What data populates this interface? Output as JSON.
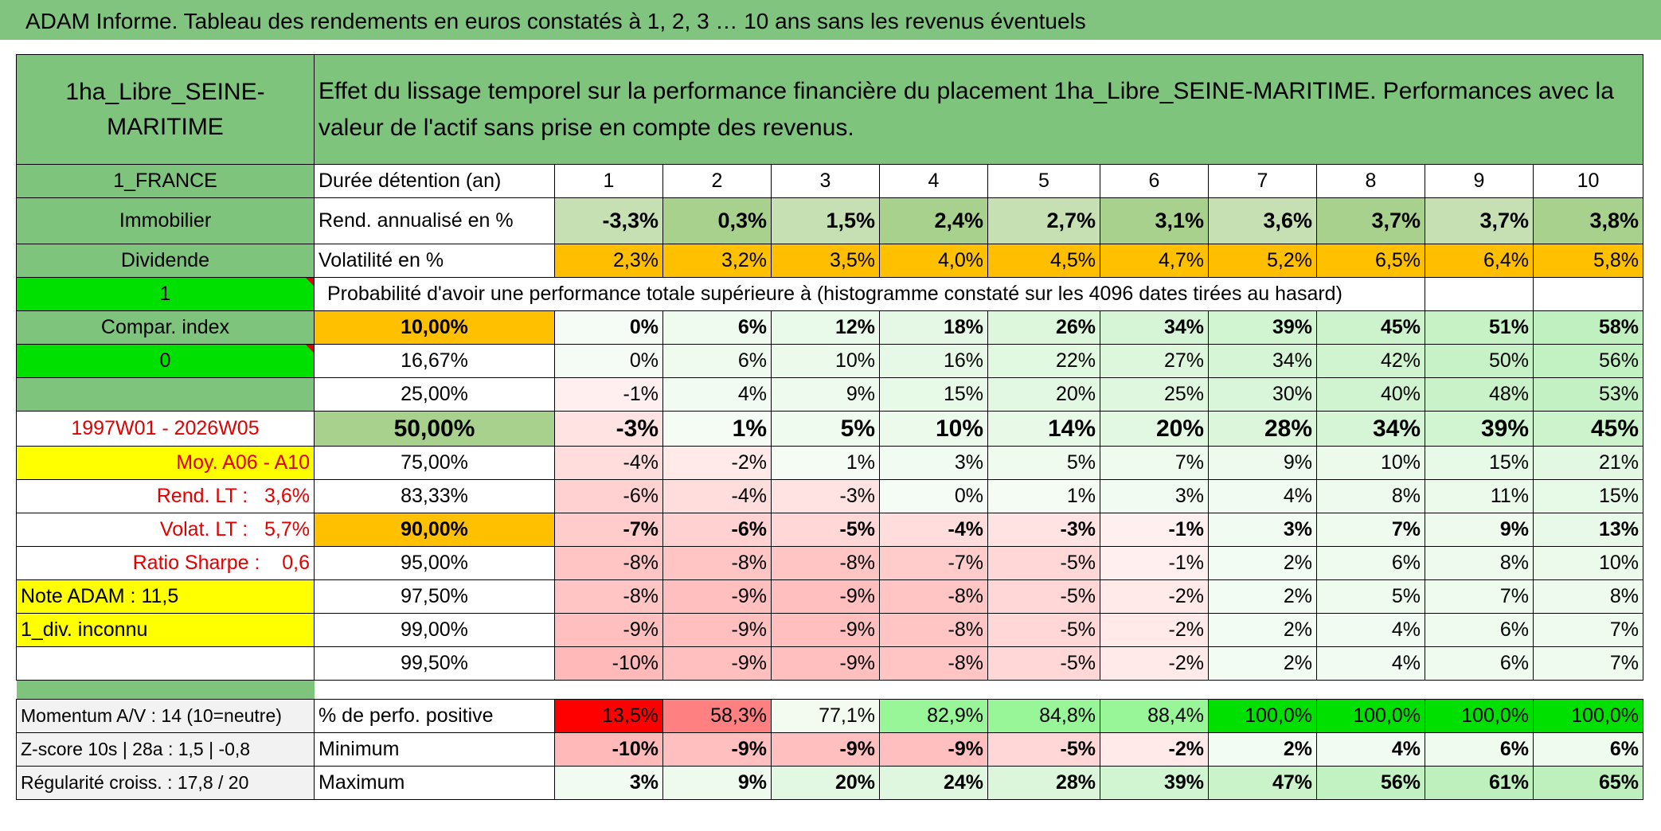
{
  "title": "ADAM Informe. Tableau des rendements en euros constatés à 1, 2, 3 … 10 ans sans les revenus éventuels",
  "asset_name": "1ha_Libre_SEINE-MARITIME",
  "header_text": "Effet du lissage temporel sur la performance financière du placement 1ha_Libre_SEINE-MARITIME. Performances avec la valeur de l'actif sans prise en compte des revenus.",
  "left": {
    "country": "1_FRANCE",
    "category": "Immobilier",
    "dividend": "Dividende",
    "one": "1",
    "compar_index": "Compar. index",
    "zero": "0",
    "period": "1997W01 - 2026W05",
    "moy": "Moy. A06 - A10",
    "rend_lt_label": "Rend. LT :",
    "rend_lt_value": "3,6%",
    "volat_lt_label": "Volat. LT :",
    "volat_lt_value": "5,7%",
    "sharpe_label": "Ratio Sharpe :",
    "sharpe_value": "0,6",
    "note": "Note ADAM : 11,5",
    "div": "1_div. inconnu"
  },
  "duration_label": "Durée détention (an)",
  "years": [
    "1",
    "2",
    "3",
    "4",
    "5",
    "6",
    "7",
    "8",
    "9",
    "10"
  ],
  "rend_label": "Rend. annualisé en %",
  "rend": [
    "-3,3%",
    "0,3%",
    "1,5%",
    "2,4%",
    "2,7%",
    "3,1%",
    "3,6%",
    "3,7%",
    "3,7%",
    "3,8%"
  ],
  "vol_label": "Volatilité en %",
  "vol": [
    "2,3%",
    "3,2%",
    "3,5%",
    "4,0%",
    "4,5%",
    "4,7%",
    "5,2%",
    "6,5%",
    "6,4%",
    "5,8%"
  ],
  "prob_text": "Probabilité d'avoir une performance totale supérieure à (histogramme constaté sur les 4096 dates tirées au hasard)",
  "percentiles": [
    {
      "p": "10,00%",
      "v": [
        "0%",
        "6%",
        "12%",
        "18%",
        "26%",
        "34%",
        "39%",
        "45%",
        "51%",
        "58%"
      ]
    },
    {
      "p": "16,67%",
      "v": [
        "0%",
        "6%",
        "10%",
        "16%",
        "22%",
        "27%",
        "34%",
        "42%",
        "50%",
        "56%"
      ]
    },
    {
      "p": "25,00%",
      "v": [
        "-1%",
        "4%",
        "9%",
        "15%",
        "20%",
        "25%",
        "30%",
        "40%",
        "48%",
        "53%"
      ]
    },
    {
      "p": "50,00%",
      "v": [
        "-3%",
        "1%",
        "5%",
        "10%",
        "14%",
        "20%",
        "28%",
        "34%",
        "39%",
        "45%"
      ]
    },
    {
      "p": "75,00%",
      "v": [
        "-4%",
        "-2%",
        "1%",
        "3%",
        "5%",
        "7%",
        "9%",
        "10%",
        "15%",
        "21%"
      ]
    },
    {
      "p": "83,33%",
      "v": [
        "-6%",
        "-4%",
        "-3%",
        "0%",
        "1%",
        "3%",
        "4%",
        "8%",
        "11%",
        "15%"
      ]
    },
    {
      "p": "90,00%",
      "v": [
        "-7%",
        "-6%",
        "-5%",
        "-4%",
        "-3%",
        "-1%",
        "3%",
        "7%",
        "9%",
        "13%"
      ]
    },
    {
      "p": "95,00%",
      "v": [
        "-8%",
        "-8%",
        "-8%",
        "-7%",
        "-5%",
        "-1%",
        "2%",
        "6%",
        "8%",
        "10%"
      ]
    },
    {
      "p": "97,50%",
      "v": [
        "-8%",
        "-9%",
        "-9%",
        "-8%",
        "-5%",
        "-2%",
        "2%",
        "5%",
        "7%",
        "8%"
      ]
    },
    {
      "p": "99,00%",
      "v": [
        "-9%",
        "-9%",
        "-9%",
        "-8%",
        "-5%",
        "-2%",
        "2%",
        "4%",
        "6%",
        "7%"
      ]
    },
    {
      "p": "99,50%",
      "v": [
        "-10%",
        "-9%",
        "-9%",
        "-8%",
        "-5%",
        "-2%",
        "2%",
        "4%",
        "6%",
        "7%"
      ]
    }
  ],
  "bottom": {
    "momentum": "Momentum A/V : 14 (10=neutre)",
    "zscore": "Z-score 10s | 28a : 1,5 | -0,8",
    "regularite": "Régularité croiss. : 17,8 / 20",
    "pos_label": "% de perfo. positive",
    "pos": [
      "13,5%",
      "58,3%",
      "77,1%",
      "82,9%",
      "84,8%",
      "88,4%",
      "100,0%",
      "100,0%",
      "100,0%",
      "100,0%"
    ],
    "min_label": "Minimum",
    "min": [
      "-10%",
      "-9%",
      "-9%",
      "-9%",
      "-5%",
      "-2%",
      "2%",
      "4%",
      "6%",
      "6%"
    ],
    "max_label": "Maximum",
    "max": [
      "3%",
      "9%",
      "20%",
      "24%",
      "28%",
      "39%",
      "47%",
      "56%",
      "61%",
      "65%"
    ]
  },
  "colors": {
    "header_green": "#7ec47d",
    "bright_green": "#00e000",
    "yellow": "#ffff00",
    "orange": "#ffc000",
    "red_text": "#e00000"
  }
}
